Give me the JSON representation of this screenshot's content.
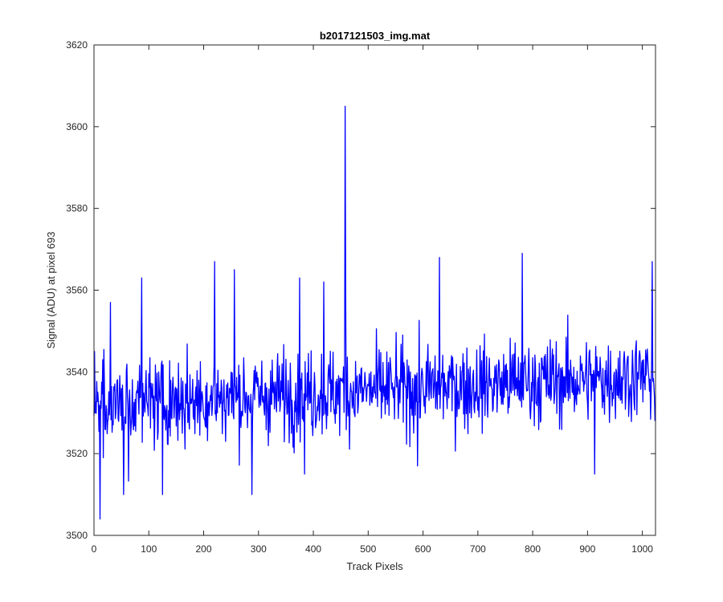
{
  "chart_data": {
    "type": "line",
    "title": "b2017121503_img.mat",
    "xlabel": "Track Pixels",
    "ylabel": "Signal (ADU) at pixel 693",
    "xlim": [
      0,
      1024
    ],
    "ylim": [
      3500,
      3620
    ],
    "xticks": [
      0,
      100,
      200,
      300,
      400,
      500,
      600,
      700,
      800,
      900,
      1000
    ],
    "yticks": [
      3500,
      3520,
      3540,
      3560,
      3580,
      3600,
      3620
    ],
    "grid": false,
    "legend": "none",
    "series": [
      {
        "color": "#0000ff",
        "x_start": 0,
        "x_step": 1,
        "n_points": 1024,
        "baseline_start": 3532,
        "baseline_end": 3539,
        "noise_sd": 7,
        "min": 3504,
        "max": 3605,
        "notable_points": [
          {
            "x": 1,
            "y": 3545
          },
          {
            "x": 11,
            "y": 3504
          },
          {
            "x": 17,
            "y": 3519
          },
          {
            "x": 30,
            "y": 3557
          },
          {
            "x": 54,
            "y": 3510
          },
          {
            "x": 87,
            "y": 3563
          },
          {
            "x": 125,
            "y": 3510
          },
          {
            "x": 220,
            "y": 3567
          },
          {
            "x": 256,
            "y": 3565
          },
          {
            "x": 288,
            "y": 3510
          },
          {
            "x": 375,
            "y": 3563
          },
          {
            "x": 384,
            "y": 3515
          },
          {
            "x": 419,
            "y": 3562
          },
          {
            "x": 458,
            "y": 3605
          },
          {
            "x": 459,
            "y": 3560
          },
          {
            "x": 590,
            "y": 3517
          },
          {
            "x": 630,
            "y": 3568
          },
          {
            "x": 781,
            "y": 3569
          },
          {
            "x": 913,
            "y": 3515
          },
          {
            "x": 1018,
            "y": 3567
          },
          {
            "x": 1023,
            "y": 3528
          }
        ]
      }
    ]
  }
}
